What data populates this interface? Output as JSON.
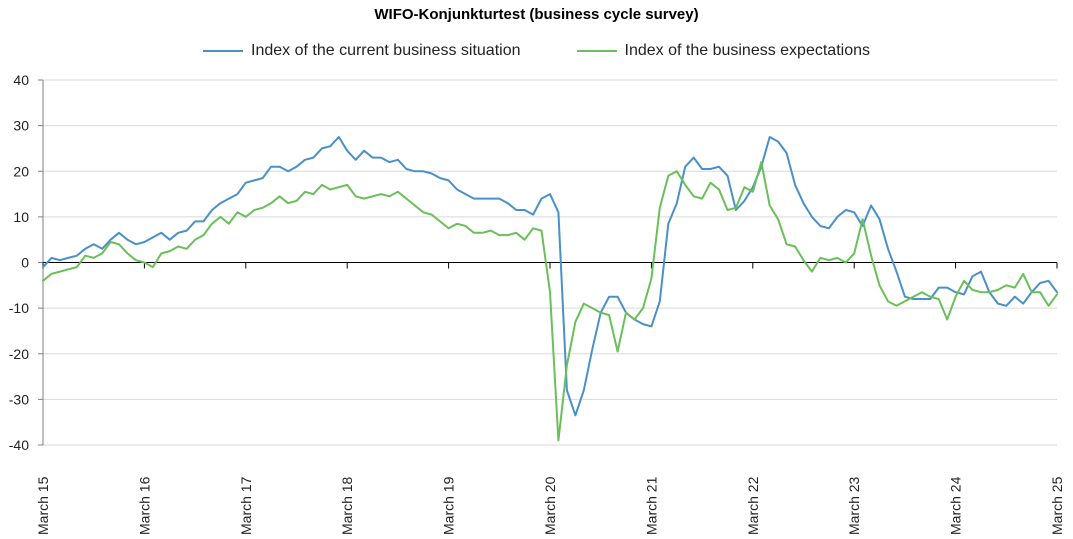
{
  "chart_data": {
    "type": "line",
    "title": "WIFO-Konjunkturtest (business cycle survey)",
    "xlabel": "",
    "ylabel": "",
    "ylim": [
      -40,
      40
    ],
    "yticks": [
      -40,
      -30,
      -20,
      -10,
      0,
      10,
      20,
      30,
      40
    ],
    "xlim": [
      0,
      120
    ],
    "xticks": [
      {
        "x": 0,
        "label": "March 15"
      },
      {
        "x": 12,
        "label": "March 16"
      },
      {
        "x": 24,
        "label": "March 17"
      },
      {
        "x": 36,
        "label": "March 18"
      },
      {
        "x": 48,
        "label": "March 19"
      },
      {
        "x": 60,
        "label": "March 20"
      },
      {
        "x": 72,
        "label": "March 21"
      },
      {
        "x": 84,
        "label": "March 22"
      },
      {
        "x": 96,
        "label": "March 23"
      },
      {
        "x": 108,
        "label": "March 24"
      },
      {
        "x": 120,
        "label": "March 25"
      }
    ],
    "grid": "horizontal",
    "legend_position": "top",
    "series": [
      {
        "name": "Index of the current business situation",
        "color": "#4A90C8",
        "values": [
          -1,
          1,
          0.5,
          1,
          1.5,
          3,
          4,
          3,
          5,
          6.5,
          5,
          4,
          4.5,
          5.5,
          6.5,
          5,
          6.5,
          7,
          9,
          9,
          11.5,
          13,
          14,
          15,
          17.5,
          18,
          18.5,
          21,
          21,
          20,
          21,
          22.5,
          23,
          25,
          25.5,
          27.5,
          24.5,
          22.5,
          24.5,
          23,
          23,
          22,
          22.5,
          20.5,
          20,
          20,
          19.5,
          18.5,
          18,
          16,
          15,
          14,
          14,
          14,
          14,
          13,
          11.5,
          11.5,
          10.5,
          14,
          15,
          11,
          -28,
          -33.5,
          -28,
          -19,
          -11,
          -7.5,
          -7.5,
          -11,
          -12.5,
          -13.5,
          -14,
          -8.5,
          8.5,
          13,
          21,
          23,
          20.5,
          20.5,
          21,
          19,
          11.5,
          13.5,
          16.5,
          21,
          27.5,
          26.5,
          24,
          17,
          13,
          10,
          8,
          7.5,
          10,
          11.5,
          11,
          8,
          12.5,
          9.5,
          3,
          -2,
          -7.5,
          -8,
          -8,
          -8,
          -5.5,
          -5.5,
          -6.5,
          -7,
          -3,
          -2,
          -6.5,
          -9,
          -9.5,
          -7.5,
          -9,
          -6.5,
          -4.5,
          -4,
          -6.5
        ]
      },
      {
        "name": "Index of the business expectations",
        "color": "#6BBF59",
        "values": [
          -4,
          -2.5,
          -2,
          -1.5,
          -1,
          1.5,
          1,
          2,
          4.5,
          4,
          2,
          0.5,
          0,
          -1,
          2,
          2.5,
          3.5,
          3,
          5,
          6,
          8.5,
          10,
          8.5,
          11,
          10,
          11.5,
          12,
          13,
          14.5,
          13,
          13.5,
          15.5,
          15,
          17,
          16,
          16.5,
          17,
          14.5,
          14,
          14.5,
          15,
          14.5,
          15.5,
          14,
          12.5,
          11,
          10.5,
          9,
          7.5,
          8.5,
          8,
          6.5,
          6.5,
          7,
          6,
          6,
          6.5,
          5,
          7.5,
          7,
          -6.5,
          -39,
          -22.5,
          -13,
          -9,
          -10,
          -11,
          -11.5,
          -19.5,
          -11,
          -12.5,
          -10,
          -3.5,
          12,
          19,
          20,
          17,
          14.5,
          14,
          17.5,
          16,
          11.5,
          12,
          16.5,
          15.5,
          22,
          12.5,
          9.5,
          4,
          3.5,
          0.5,
          -2,
          1,
          0.5,
          1,
          0,
          2,
          9.5,
          1.5,
          -5,
          -8.5,
          -9.5,
          -8.5,
          -7.5,
          -6.5,
          -7.5,
          -8,
          -12.5,
          -7.5,
          -4,
          -6,
          -6.5,
          -6.5,
          -6,
          -5,
          -5.5,
          -2.5,
          -6.5,
          -6.5,
          -9.5,
          -7
        ]
      }
    ]
  }
}
